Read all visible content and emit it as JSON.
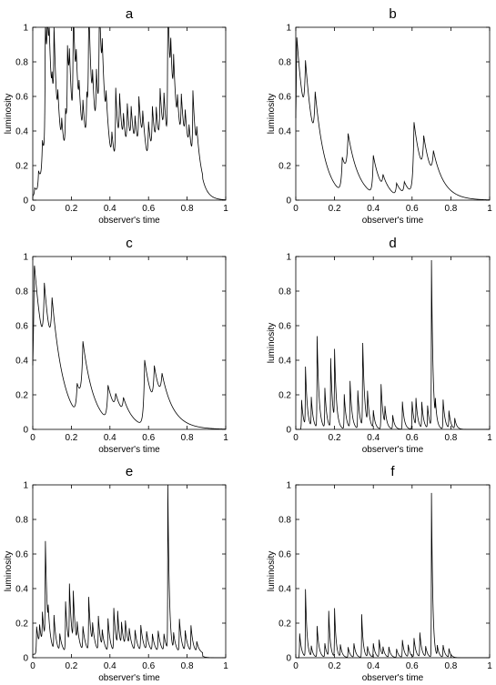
{
  "chart_data": [
    {
      "type": "line",
      "title": "a",
      "xlabel": "observer's time",
      "ylabel": "luminosity",
      "xlim": [
        0,
        1
      ],
      "ylim": [
        0,
        1
      ],
      "xticks": [
        "0",
        "0.2",
        "0.4",
        "0.6",
        "0.8",
        "1"
      ],
      "yticks": [
        "0",
        "0.2",
        "0.4",
        "0.6",
        "0.8",
        "1"
      ],
      "grid": false,
      "series": [
        {
          "base": 0.02,
          "end": 0.88,
          "pulses": [
            [
              0.01,
              0.05,
              0.03
            ],
            [
              0.03,
              0.12,
              0.03
            ],
            [
              0.05,
              0.25,
              0.04
            ],
            [
              0.065,
              0.82,
              0.02
            ],
            [
              0.075,
              0.44,
              0.02
            ],
            [
              0.085,
              0.3,
              0.03
            ],
            [
              0.1,
              0.18,
              0.03
            ],
            [
              0.11,
              0.51,
              0.02
            ],
            [
              0.13,
              0.2,
              0.03
            ],
            [
              0.15,
              0.17,
              0.03
            ],
            [
              0.17,
              0.28,
              0.03
            ],
            [
              0.18,
              0.5,
              0.02
            ],
            [
              0.19,
              0.3,
              0.03
            ],
            [
              0.21,
              0.73,
              0.02
            ],
            [
              0.225,
              0.3,
              0.03
            ],
            [
              0.24,
              0.2,
              0.03
            ],
            [
              0.26,
              0.24,
              0.03
            ],
            [
              0.28,
              0.32,
              0.03
            ],
            [
              0.29,
              0.73,
              0.02
            ],
            [
              0.31,
              0.25,
              0.03
            ],
            [
              0.33,
              0.4,
              0.03
            ],
            [
              0.345,
              0.76,
              0.02
            ],
            [
              0.36,
              0.3,
              0.03
            ],
            [
              0.38,
              0.2,
              0.03
            ],
            [
              0.41,
              0.17,
              0.03
            ],
            [
              0.43,
              0.44,
              0.02
            ],
            [
              0.45,
              0.34,
              0.03
            ],
            [
              0.47,
              0.2,
              0.03
            ],
            [
              0.49,
              0.3,
              0.03
            ],
            [
              0.51,
              0.25,
              0.03
            ],
            [
              0.53,
              0.2,
              0.03
            ],
            [
              0.55,
              0.34,
              0.03
            ],
            [
              0.57,
              0.2,
              0.03
            ],
            [
              0.6,
              0.25,
              0.03
            ],
            [
              0.62,
              0.3,
              0.03
            ],
            [
              0.64,
              0.25,
              0.03
            ],
            [
              0.66,
              0.36,
              0.03
            ],
            [
              0.68,
              0.28,
              0.03
            ],
            [
              0.7,
              0.95,
              0.015
            ],
            [
              0.715,
              0.4,
              0.03
            ],
            [
              0.73,
              0.34,
              0.03
            ],
            [
              0.75,
              0.2,
              0.03
            ],
            [
              0.77,
              0.3,
              0.03
            ],
            [
              0.79,
              0.2,
              0.03
            ],
            [
              0.81,
              0.16,
              0.03
            ],
            [
              0.83,
              0.4,
              0.02
            ],
            [
              0.85,
              0.15,
              0.03
            ]
          ]
        }
      ]
    },
    {
      "type": "line",
      "title": "b",
      "xlabel": "observer's time",
      "ylabel": "luminosity",
      "xlim": [
        0,
        1
      ],
      "ylim": [
        0,
        1
      ],
      "xticks": [
        "0",
        "0.2",
        "0.4",
        "0.6",
        "0.8",
        "1"
      ],
      "yticks": [
        "0",
        "0.2",
        "0.4",
        "0.6",
        "0.8",
        "1"
      ],
      "grid": false,
      "series": [
        {
          "base": 0.0,
          "end": 1.0,
          "pulses": [
            [
              0.005,
              0.95,
              0.06
            ],
            [
              0.05,
              0.36,
              0.05
            ],
            [
              0.1,
              0.3,
              0.05
            ],
            [
              0.24,
              0.2,
              0.05
            ],
            [
              0.27,
              0.25,
              0.06
            ],
            [
              0.4,
              0.22,
              0.04
            ],
            [
              0.45,
              0.07,
              0.04
            ],
            [
              0.52,
              0.07,
              0.04
            ],
            [
              0.56,
              0.07,
              0.04
            ],
            [
              0.61,
              0.42,
              0.05
            ],
            [
              0.66,
              0.21,
              0.05
            ],
            [
              0.71,
              0.15,
              0.06
            ]
          ]
        }
      ]
    },
    {
      "type": "line",
      "title": "c",
      "xlabel": "observer's time",
      "ylabel": "",
      "xlim": [
        0,
        1
      ],
      "ylim": [
        0,
        1
      ],
      "xticks": [
        "0",
        "0.2",
        "0.4",
        "0.6",
        "0.8",
        "1"
      ],
      "yticks": [
        "0",
        "0.2",
        "0.4",
        "0.6",
        "0.8",
        "1"
      ],
      "grid": false,
      "series": [
        {
          "base": 0.0,
          "end": 1.0,
          "pulses": [
            [
              0.008,
              0.96,
              0.07
            ],
            [
              0.06,
              0.39,
              0.05
            ],
            [
              0.1,
              0.33,
              0.06
            ],
            [
              0.23,
              0.17,
              0.05
            ],
            [
              0.26,
              0.36,
              0.06
            ],
            [
              0.39,
              0.2,
              0.05
            ],
            [
              0.43,
              0.09,
              0.05
            ],
            [
              0.47,
              0.09,
              0.05
            ],
            [
              0.58,
              0.38,
              0.05
            ],
            [
              0.63,
              0.22,
              0.05
            ],
            [
              0.67,
              0.16,
              0.07
            ]
          ]
        }
      ]
    },
    {
      "type": "line",
      "title": "d",
      "xlabel": "observer's time",
      "ylabel": "luminosity",
      "xlim": [
        0,
        1
      ],
      "ylim": [
        0,
        1
      ],
      "xticks": [
        "0",
        "0.2",
        "0.4",
        "0.6",
        "0.8",
        "1"
      ],
      "yticks": [
        "0",
        "0.2",
        "0.4",
        "0.6",
        "0.8",
        "1"
      ],
      "grid": false,
      "series": [
        {
          "base": 0.0,
          "end": 0.88,
          "pulses": [
            [
              0.03,
              0.17,
              0.01
            ],
            [
              0.05,
              0.34,
              0.01
            ],
            [
              0.08,
              0.17,
              0.01
            ],
            [
              0.11,
              0.53,
              0.01
            ],
            [
              0.15,
              0.23,
              0.01
            ],
            [
              0.18,
              0.4,
              0.01
            ],
            [
              0.2,
              0.41,
              0.01
            ],
            [
              0.25,
              0.2,
              0.01
            ],
            [
              0.28,
              0.27,
              0.01
            ],
            [
              0.32,
              0.22,
              0.01
            ],
            [
              0.345,
              0.51,
              0.01
            ],
            [
              0.37,
              0.18,
              0.01
            ],
            [
              0.4,
              0.1,
              0.01
            ],
            [
              0.44,
              0.26,
              0.01
            ],
            [
              0.46,
              0.1,
              0.01
            ],
            [
              0.5,
              0.08,
              0.01
            ],
            [
              0.55,
              0.16,
              0.01
            ],
            [
              0.6,
              0.16,
              0.01
            ],
            [
              0.62,
              0.16,
              0.01
            ],
            [
              0.65,
              0.15,
              0.01
            ],
            [
              0.68,
              0.13,
              0.01
            ],
            [
              0.7,
              0.96,
              0.008
            ],
            [
              0.72,
              0.1,
              0.01
            ],
            [
              0.76,
              0.17,
              0.01
            ],
            [
              0.79,
              0.1,
              0.01
            ],
            [
              0.82,
              0.06,
              0.01
            ]
          ]
        }
      ]
    },
    {
      "type": "line",
      "title": "e",
      "xlabel": "observer's time",
      "ylabel": "luminosity",
      "xlim": [
        0,
        1
      ],
      "ylim": [
        0,
        1
      ],
      "xticks": [
        "0",
        "0.2",
        "0.4",
        "0.6",
        "0.8",
        "1"
      ],
      "yticks": [
        "0",
        "0.2",
        "0.4",
        "0.6",
        "0.8",
        "1"
      ],
      "grid": false,
      "series": [
        {
          "base": 0.02,
          "end": 0.88,
          "pulses": [
            [
              0.02,
              0.16,
              0.015
            ],
            [
              0.035,
              0.12,
              0.015
            ],
            [
              0.05,
              0.18,
              0.015
            ],
            [
              0.065,
              0.6,
              0.01
            ],
            [
              0.08,
              0.12,
              0.015
            ],
            [
              0.11,
              0.2,
              0.012
            ],
            [
              0.14,
              0.1,
              0.015
            ],
            [
              0.17,
              0.29,
              0.012
            ],
            [
              0.19,
              0.35,
              0.012
            ],
            [
              0.21,
              0.29,
              0.012
            ],
            [
              0.23,
              0.12,
              0.015
            ],
            [
              0.26,
              0.14,
              0.015
            ],
            [
              0.29,
              0.31,
              0.012
            ],
            [
              0.31,
              0.12,
              0.015
            ],
            [
              0.34,
              0.2,
              0.012
            ],
            [
              0.36,
              0.1,
              0.015
            ],
            [
              0.39,
              0.19,
              0.012
            ],
            [
              0.42,
              0.25,
              0.012
            ],
            [
              0.44,
              0.2,
              0.012
            ],
            [
              0.46,
              0.14,
              0.015
            ],
            [
              0.48,
              0.15,
              0.015
            ],
            [
              0.5,
              0.1,
              0.015
            ],
            [
              0.53,
              0.12,
              0.015
            ],
            [
              0.56,
              0.15,
              0.015
            ],
            [
              0.59,
              0.11,
              0.015
            ],
            [
              0.62,
              0.1,
              0.015
            ],
            [
              0.65,
              0.12,
              0.015
            ],
            [
              0.68,
              0.1,
              0.015
            ],
            [
              0.7,
              0.95,
              0.008
            ],
            [
              0.73,
              0.1,
              0.015
            ],
            [
              0.76,
              0.19,
              0.012
            ],
            [
              0.79,
              0.12,
              0.015
            ],
            [
              0.82,
              0.15,
              0.012
            ],
            [
              0.85,
              0.06,
              0.015
            ]
          ]
        }
      ]
    },
    {
      "type": "line",
      "title": "f",
      "xlabel": "observer's time",
      "ylabel": "luminosity",
      "xlim": [
        0,
        1
      ],
      "ylim": [
        0,
        1
      ],
      "xticks": [
        "0",
        "0.2",
        "0.4",
        "0.6",
        "0.8",
        "1"
      ],
      "yticks": [
        "0",
        "0.2",
        "0.4",
        "0.6",
        "0.8",
        "1"
      ],
      "grid": false,
      "series": [
        {
          "base": 0.0,
          "end": 0.88,
          "pulses": [
            [
              0.02,
              0.14,
              0.01
            ],
            [
              0.05,
              0.39,
              0.008
            ],
            [
              0.08,
              0.06,
              0.01
            ],
            [
              0.11,
              0.18,
              0.01
            ],
            [
              0.15,
              0.08,
              0.01
            ],
            [
              0.17,
              0.26,
              0.008
            ],
            [
              0.2,
              0.28,
              0.008
            ],
            [
              0.23,
              0.07,
              0.01
            ],
            [
              0.27,
              0.06,
              0.01
            ],
            [
              0.3,
              0.08,
              0.01
            ],
            [
              0.34,
              0.25,
              0.008
            ],
            [
              0.37,
              0.06,
              0.01
            ],
            [
              0.4,
              0.08,
              0.01
            ],
            [
              0.43,
              0.1,
              0.01
            ],
            [
              0.45,
              0.05,
              0.01
            ],
            [
              0.48,
              0.06,
              0.01
            ],
            [
              0.52,
              0.05,
              0.01
            ],
            [
              0.55,
              0.1,
              0.01
            ],
            [
              0.58,
              0.07,
              0.01
            ],
            [
              0.61,
              0.11,
              0.01
            ],
            [
              0.64,
              0.14,
              0.01
            ],
            [
              0.67,
              0.06,
              0.01
            ],
            [
              0.7,
              0.95,
              0.007
            ],
            [
              0.73,
              0.06,
              0.01
            ],
            [
              0.76,
              0.07,
              0.01
            ],
            [
              0.79,
              0.05,
              0.01
            ]
          ]
        }
      ]
    }
  ]
}
